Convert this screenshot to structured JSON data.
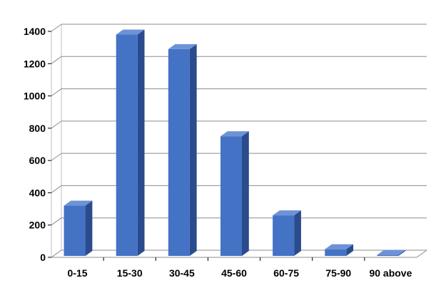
{
  "chart_data": {
    "type": "bar",
    "title": "",
    "xlabel": "",
    "ylabel": "",
    "categories": [
      "0-15",
      "15-30",
      "30-45",
      "45-60",
      "60-75",
      "75-90",
      "90 above"
    ],
    "values": [
      320,
      1380,
      1290,
      750,
      260,
      50,
      15
    ],
    "ylim": [
      0,
      1400
    ],
    "yticks": [
      0,
      200,
      400,
      600,
      800,
      1000,
      1200,
      1400
    ],
    "ytick_labels": [
      "0",
      "200",
      "400",
      "600",
      "800",
      "1000",
      "1200",
      "1400"
    ],
    "grid": true,
    "legend": "none",
    "style": "3d-column"
  },
  "colors": {
    "bar_front": "#4472C4",
    "bar_side": "#2A4C8C",
    "bar_top": "#6D93D6",
    "grid": "#8C8C8C",
    "wall": "#BFBFBF"
  }
}
